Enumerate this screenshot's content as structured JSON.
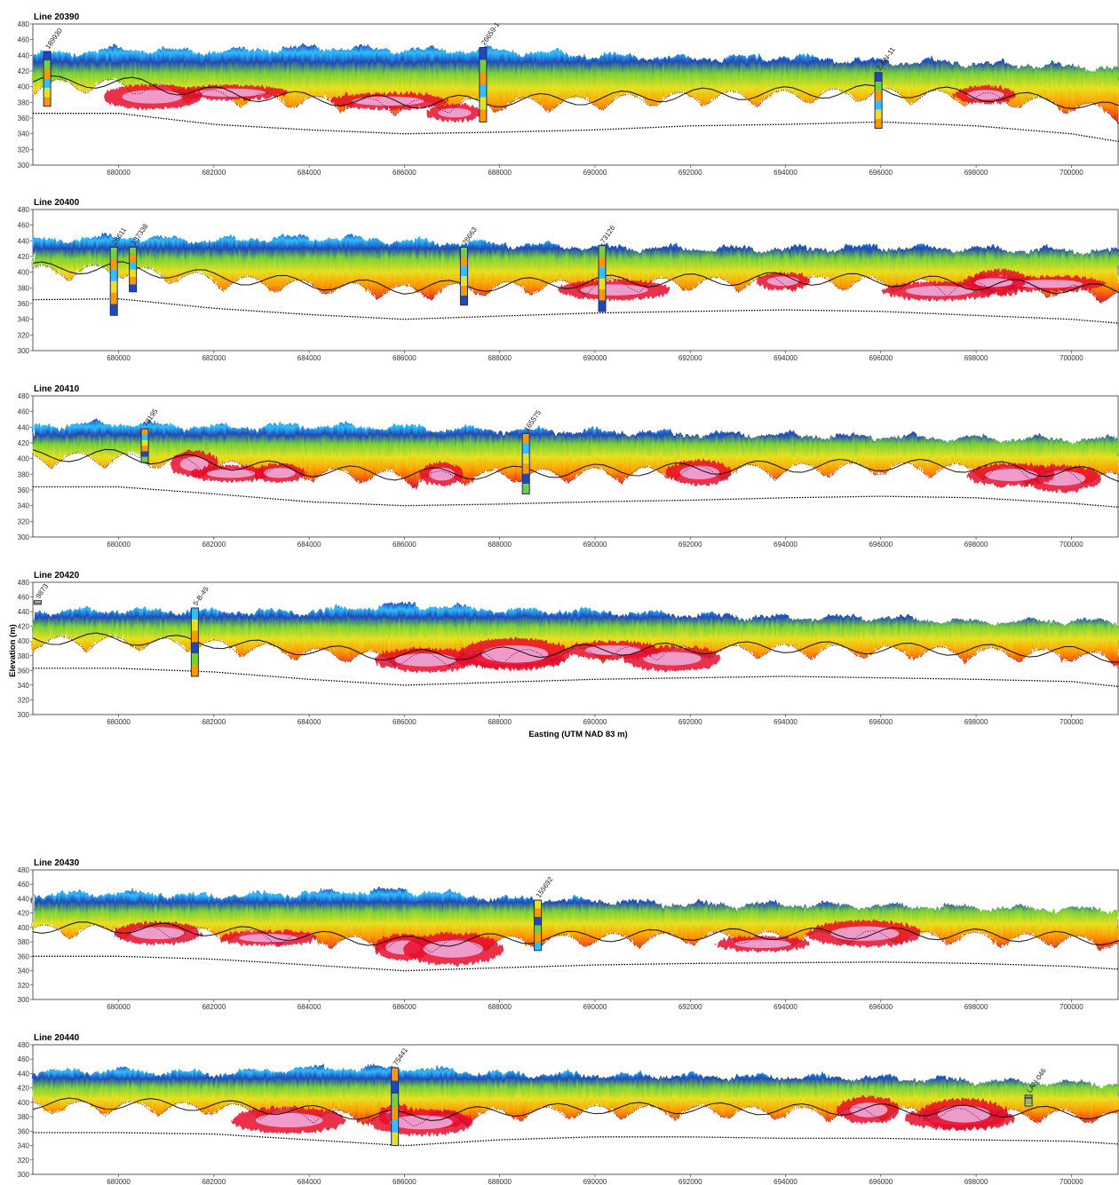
{
  "chart_data": {
    "type": "section-profiles",
    "xlabel": "Easting (UTM NAD 83 m)",
    "ylabel": "Elevation (m)",
    "ylim": [
      300,
      480
    ],
    "xlim": [
      678200,
      701000
    ],
    "x_ticks": [
      "680000",
      "682000",
      "684000",
      "686000",
      "688000",
      "690000",
      "692000",
      "694000",
      "696000",
      "698000",
      "700000"
    ],
    "y_ticks": [
      "300",
      "320",
      "340",
      "360",
      "380",
      "400",
      "420",
      "440",
      "460",
      "480"
    ],
    "colors": {
      "very_resistive": "#2048b8",
      "resistive": "#30c0ff",
      "mid": "#78d038",
      "mid_low": "#e8e020",
      "low": "#ff9800",
      "conductive": "#e8102a",
      "very_conductive": "#f0a8d8",
      "bedrock_line": "#000000",
      "surface_line": "#5a1a70"
    },
    "panels": [
      {
        "title": "Line 20390",
        "bedrock": [
          [
            678200,
            366
          ],
          [
            680000,
            366
          ],
          [
            682000,
            352
          ],
          [
            684000,
            345
          ],
          [
            686000,
            340
          ],
          [
            688000,
            342
          ],
          [
            690000,
            345
          ],
          [
            692000,
            350
          ],
          [
            694000,
            352
          ],
          [
            696000,
            355
          ],
          [
            698000,
            350
          ],
          [
            700000,
            340
          ],
          [
            701000,
            330
          ]
        ],
        "surface": [
          [
            678200,
            440
          ],
          [
            680000,
            448
          ],
          [
            682000,
            445
          ],
          [
            684000,
            450
          ],
          [
            686000,
            447
          ],
          [
            688000,
            446
          ],
          [
            690000,
            440
          ],
          [
            692000,
            436
          ],
          [
            694000,
            438
          ],
          [
            696000,
            432
          ],
          [
            698000,
            430
          ],
          [
            700000,
            426
          ],
          [
            701000,
            423
          ]
        ],
        "wells": [
          {
            "name": "189930",
            "x": 678500,
            "top": 445,
            "bottom": 375
          },
          {
            "name": "26659-1",
            "x": 687650,
            "top": 450,
            "bottom": 355
          },
          {
            "name": "Z-EN-11",
            "x": 695950,
            "top": 418,
            "bottom": 347
          }
        ]
      },
      {
        "title": "Line 20400",
        "bedrock": [
          [
            678200,
            365
          ],
          [
            680000,
            366
          ],
          [
            682000,
            354
          ],
          [
            684000,
            346
          ],
          [
            686000,
            340
          ],
          [
            688000,
            344
          ],
          [
            690000,
            348
          ],
          [
            692000,
            350
          ],
          [
            694000,
            352
          ],
          [
            696000,
            350
          ],
          [
            698000,
            345
          ],
          [
            700000,
            340
          ],
          [
            701000,
            335
          ]
        ],
        "surface": [
          [
            678200,
            440
          ],
          [
            680000,
            445
          ],
          [
            682000,
            440
          ],
          [
            684000,
            445
          ],
          [
            686000,
            440
          ],
          [
            688000,
            436
          ],
          [
            690000,
            432
          ],
          [
            692000,
            430
          ],
          [
            694000,
            430
          ],
          [
            696000,
            432
          ],
          [
            698000,
            430
          ],
          [
            700000,
            428
          ],
          [
            701000,
            427
          ]
        ],
        "wells": [
          {
            "name": "26611",
            "x": 679900,
            "top": 432,
            "bottom": 345
          },
          {
            "name": "137338",
            "x": 680300,
            "top": 432,
            "bottom": 375
          },
          {
            "name": "26663",
            "x": 687250,
            "top": 432,
            "bottom": 358
          },
          {
            "name": "73126",
            "x": 690150,
            "top": 434,
            "bottom": 350
          }
        ]
      },
      {
        "title": "Line 20410",
        "bedrock": [
          [
            678200,
            364
          ],
          [
            680000,
            364
          ],
          [
            682000,
            355
          ],
          [
            684000,
            345
          ],
          [
            686000,
            340
          ],
          [
            688000,
            342
          ],
          [
            690000,
            345
          ],
          [
            692000,
            347
          ],
          [
            694000,
            350
          ],
          [
            696000,
            352
          ],
          [
            698000,
            350
          ],
          [
            700000,
            343
          ],
          [
            701000,
            338
          ]
        ],
        "surface": [
          [
            678200,
            442
          ],
          [
            680000,
            445
          ],
          [
            682000,
            440
          ],
          [
            684000,
            442
          ],
          [
            686000,
            440
          ],
          [
            688000,
            436
          ],
          [
            690000,
            435
          ],
          [
            692000,
            432
          ],
          [
            694000,
            430
          ],
          [
            696000,
            428
          ],
          [
            698000,
            426
          ],
          [
            700000,
            425
          ],
          [
            701000,
            424
          ]
        ],
        "wells": [
          {
            "name": "73195",
            "x": 680550,
            "top": 438,
            "bottom": 395
          },
          {
            "name": "165575",
            "x": 688550,
            "top": 432,
            "bottom": 355
          }
        ]
      },
      {
        "title": "Line 20420",
        "bedrock": [
          [
            678200,
            363
          ],
          [
            680000,
            363
          ],
          [
            682000,
            358
          ],
          [
            684000,
            348
          ],
          [
            686000,
            340
          ],
          [
            688000,
            344
          ],
          [
            690000,
            348
          ],
          [
            692000,
            350
          ],
          [
            694000,
            352
          ],
          [
            696000,
            350
          ],
          [
            698000,
            348
          ],
          [
            700000,
            345
          ],
          [
            701000,
            338
          ]
        ],
        "surface": [
          [
            678200,
            440
          ],
          [
            680000,
            442
          ],
          [
            682000,
            440
          ],
          [
            684000,
            440
          ],
          [
            686000,
            450
          ],
          [
            688000,
            442
          ],
          [
            690000,
            440
          ],
          [
            692000,
            436
          ],
          [
            694000,
            432
          ],
          [
            696000,
            432
          ],
          [
            698000,
            426
          ],
          [
            700000,
            428
          ],
          [
            701000,
            426
          ]
        ],
        "wells": [
          {
            "name": "9873",
            "x": 678300,
            "top": 455,
            "bottom": 450
          },
          {
            "name": "5-B-45",
            "x": 681600,
            "top": 445,
            "bottom": 352
          }
        ]
      },
      {
        "title": "Line 20430",
        "bedrock": [
          [
            678200,
            360
          ],
          [
            680000,
            360
          ],
          [
            682000,
            356
          ],
          [
            684000,
            348
          ],
          [
            686000,
            340
          ],
          [
            688000,
            344
          ],
          [
            690000,
            348
          ],
          [
            692000,
            350
          ],
          [
            694000,
            351
          ],
          [
            696000,
            352
          ],
          [
            698000,
            350
          ],
          [
            700000,
            346
          ],
          [
            701000,
            342
          ]
        ],
        "surface": [
          [
            678200,
            445
          ],
          [
            680000,
            448
          ],
          [
            682000,
            444
          ],
          [
            684000,
            448
          ],
          [
            686000,
            452
          ],
          [
            688000,
            440
          ],
          [
            690000,
            438
          ],
          [
            692000,
            432
          ],
          [
            694000,
            432
          ],
          [
            696000,
            430
          ],
          [
            698000,
            428
          ],
          [
            700000,
            426
          ],
          [
            701000,
            425
          ]
        ],
        "wells": [
          {
            "name": "155692",
            "x": 688800,
            "top": 438,
            "bottom": 368
          }
        ]
      },
      {
        "title": "Line 20440",
        "bedrock": [
          [
            678200,
            358
          ],
          [
            680000,
            358
          ],
          [
            682000,
            356
          ],
          [
            684000,
            348
          ],
          [
            686000,
            340
          ],
          [
            688000,
            348
          ],
          [
            690000,
            352
          ],
          [
            692000,
            352
          ],
          [
            694000,
            350
          ],
          [
            696000,
            350
          ],
          [
            698000,
            348
          ],
          [
            700000,
            346
          ],
          [
            701000,
            342
          ]
        ],
        "surface": [
          [
            678200,
            442
          ],
          [
            680000,
            445
          ],
          [
            682000,
            440
          ],
          [
            684000,
            447
          ],
          [
            686000,
            448
          ],
          [
            688000,
            440
          ],
          [
            690000,
            438
          ],
          [
            692000,
            436
          ],
          [
            694000,
            436
          ],
          [
            696000,
            434
          ],
          [
            698000,
            430
          ],
          [
            700000,
            427
          ],
          [
            701000,
            426
          ]
        ],
        "wells": [
          {
            "name": "75441",
            "x": 685800,
            "top": 448,
            "bottom": 340
          },
          {
            "name": "LAN-046",
            "x": 699100,
            "top": 410,
            "bottom": 395
          }
        ]
      }
    ]
  }
}
